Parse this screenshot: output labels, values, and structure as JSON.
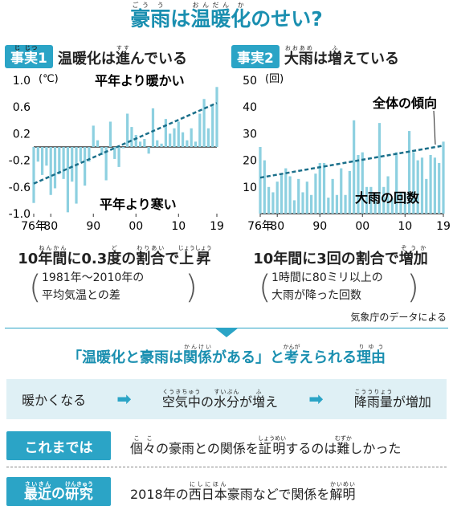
{
  "title": "豪雨は温暖化のせい?",
  "panel1": {
    "tag": "事実1",
    "heading": "温暖化は進んでいる",
    "annot_warm": "平年より暖かい",
    "annot_cold": "平年より寒い",
    "unit": "(℃)",
    "summary": "10年間に0.3度の割合で上昇",
    "note_line1": "1981年〜2010年の",
    "note_line2": "平均気温との差"
  },
  "panel2": {
    "tag": "事実2",
    "heading": "大雨は増えている",
    "annot_trend": "全体の傾向",
    "annot_count": "大雨の回数",
    "unit": "(回)",
    "summary": "10年間に3回の割合で増加",
    "note_line1": "1時間に80ミリ以上の",
    "note_line2": "大雨が降った回数"
  },
  "source": "気象庁のデータによる",
  "reason_title": "「温暖化と豪雨は関係がある」と考えられる理由",
  "flow": [
    "暖かくなる",
    "空気中の水分が増え",
    "降雨量が増加"
  ],
  "rows": [
    {
      "label": "これまでは",
      "text": "個々の豪雨との関係を証明するのは難しかった"
    },
    {
      "label": "最近の研究",
      "text": "2018年の西日本豪雨などで関係を解明"
    }
  ],
  "colors": {
    "accent": "#2ba4c6",
    "bar": "#8dd0e0",
    "trend": "#1a6f8a"
  },
  "chart_data": [
    {
      "type": "bar",
      "title": "温暖化は進んでいる",
      "ylabel": "(℃)",
      "ylim": [
        -1.0,
        1.0
      ],
      "yticks": [
        1.0,
        0.6,
        0.2,
        -0.2,
        -0.6,
        -1.0
      ],
      "xticks": [
        "76年",
        "80",
        "90",
        "00",
        "10",
        "19"
      ],
      "x": [
        1976,
        1977,
        1978,
        1979,
        1980,
        1981,
        1982,
        1983,
        1984,
        1985,
        1986,
        1987,
        1988,
        1989,
        1990,
        1991,
        1992,
        1993,
        1994,
        1995,
        1996,
        1997,
        1998,
        1999,
        2000,
        2001,
        2002,
        2003,
        2004,
        2005,
        2006,
        2007,
        2008,
        2009,
        2010,
        2011,
        2012,
        2013,
        2014,
        2015,
        2016,
        2017,
        2018,
        2019
      ],
      "values": [
        -0.84,
        -0.22,
        -0.42,
        -0.28,
        -0.72,
        -0.62,
        -0.41,
        -0.48,
        -0.98,
        -0.52,
        -0.85,
        -0.22,
        -0.58,
        -0.22,
        0.32,
        0.1,
        -0.12,
        -0.5,
        0.38,
        -0.18,
        -0.3,
        -0.02,
        0.5,
        0.3,
        0.18,
        0.08,
        0.12,
        -0.1,
        0.58,
        0.1,
        0.05,
        0.42,
        0.2,
        0.28,
        0.38,
        0.22,
        0.1,
        0.28,
        0.08,
        0.5,
        0.72,
        0.28,
        0.62,
        0.9
      ],
      "trend": [
        -0.55,
        0.66
      ]
    },
    {
      "type": "bar",
      "title": "大雨は増えている",
      "ylabel": "(回)",
      "ylim": [
        0,
        50
      ],
      "yticks": [
        50,
        40,
        30,
        20,
        10
      ],
      "xticks": [
        "76年",
        "80",
        "90",
        "00",
        "10",
        "19"
      ],
      "x": [
        1976,
        1977,
        1978,
        1979,
        1980,
        1981,
        1982,
        1983,
        1984,
        1985,
        1986,
        1987,
        1988,
        1989,
        1990,
        1991,
        1992,
        1993,
        1994,
        1995,
        1996,
        1997,
        1998,
        1999,
        2000,
        2001,
        2002,
        2003,
        2004,
        2005,
        2006,
        2007,
        2008,
        2009,
        2010,
        2011,
        2012,
        2013,
        2014,
        2015,
        2016,
        2017,
        2018,
        2019
      ],
      "values": [
        25,
        20,
        10,
        8,
        12,
        15,
        17,
        14,
        5,
        13,
        8,
        12,
        7,
        15,
        19,
        19,
        6,
        13,
        7,
        17,
        7,
        16,
        35,
        22,
        23,
        10,
        10,
        8,
        34,
        10,
        14,
        6,
        23,
        8,
        8,
        31,
        23,
        20,
        21,
        13,
        22,
        21,
        19,
        27
      ],
      "trend": [
        13.5,
        25.5
      ]
    }
  ]
}
